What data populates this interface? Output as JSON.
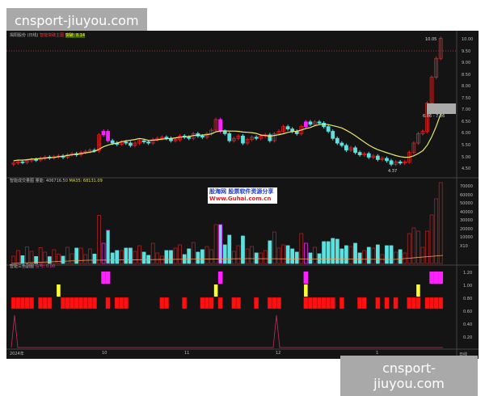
{
  "watermark_top": "cnsport-jiuyou.com",
  "watermark_bottom": "cnsport-jiuyou.com",
  "main": {
    "title": "揭阳股份 (日线)",
    "indicator": "智能突破主图",
    "breakout_label": "突破: 8.14",
    "high_label": "10.05",
    "range_label": "6.86 - 7.36",
    "low_label": "4.37",
    "price_ticks": [
      "10.00",
      "9.50",
      "9.00",
      "8.50",
      "8.00",
      "7.50",
      "7.00",
      "6.50",
      "6.00",
      "5.50",
      "5.00",
      "4.50"
    ]
  },
  "volume": {
    "title": "智能成交量图",
    "value": "量能: 406716.50",
    "ma": "MA35: 68131.09",
    "ticks": [
      "70000",
      "60000",
      "50000",
      "40000",
      "30000",
      "20000",
      "10000",
      "X10"
    ]
  },
  "indicator": {
    "title": "智能三色副图",
    "value": "信号: 0.00",
    "ticks": [
      "1.20",
      "1.00",
      "0.80",
      "0.60",
      "0.40",
      "0.20"
    ]
  },
  "x_axis": {
    "labels": [
      "2024年",
      "10",
      "11",
      "12",
      "1"
    ],
    "period": "日线"
  },
  "guhai": {
    "line1": "股海网 股票软件资源分享",
    "line2": "Www.Guhai.com.cn"
  },
  "colors": {
    "up": "#e02020",
    "down": "#5ce0e0",
    "ma": "#e8e870",
    "signal_red": "#ff1010",
    "signal_yellow": "#ffff30",
    "signal_magenta": "#ff20ff"
  },
  "closes": [
    4.75,
    4.8,
    4.78,
    4.85,
    4.9,
    4.88,
    4.95,
    5.0,
    4.97,
    5.02,
    5.05,
    5.0,
    5.1,
    5.15,
    5.1,
    5.2,
    5.25,
    5.3,
    5.28,
    5.95,
    6.1,
    5.7,
    5.6,
    5.55,
    5.65,
    5.6,
    5.5,
    5.6,
    5.7,
    5.65,
    5.6,
    5.75,
    5.8,
    5.85,
    5.8,
    5.7,
    5.75,
    5.9,
    5.85,
    5.8,
    6.0,
    5.9,
    5.85,
    6.0,
    6.15,
    6.6,
    6.1,
    6.0,
    5.7,
    5.8,
    5.9,
    5.6,
    5.75,
    5.85,
    5.8,
    5.9,
    5.95,
    5.7,
    6.0,
    6.1,
    6.3,
    6.2,
    6.1,
    6.0,
    6.3,
    6.5,
    6.4,
    6.5,
    6.45,
    6.3,
    6.1,
    5.8,
    5.6,
    5.5,
    5.3,
    5.4,
    5.2,
    5.1,
    5.15,
    5.0,
    5.05,
    4.9,
    4.95,
    4.85,
    4.7,
    4.8,
    4.75,
    4.8,
    5.2,
    5.6,
    6.0,
    6.1,
    7.3,
    8.4,
    9.2,
    10.05
  ],
  "signals": {
    "magenta": [
      20,
      21,
      46,
      65,
      93,
      94,
      95,
      96
    ],
    "yellow": [
      10,
      45,
      65,
      90
    ],
    "red": [
      0,
      1,
      2,
      3,
      4,
      6,
      7,
      8,
      11,
      12,
      13,
      14,
      15,
      16,
      17,
      18,
      21,
      23,
      24,
      25,
      33,
      34,
      38,
      42,
      43,
      44,
      46,
      49,
      50,
      54,
      57,
      58,
      59,
      65,
      66,
      67,
      68,
      69,
      70,
      71,
      73,
      77,
      78,
      81,
      83,
      85,
      88,
      89,
      90,
      92,
      93,
      94,
      95
    ]
  }
}
